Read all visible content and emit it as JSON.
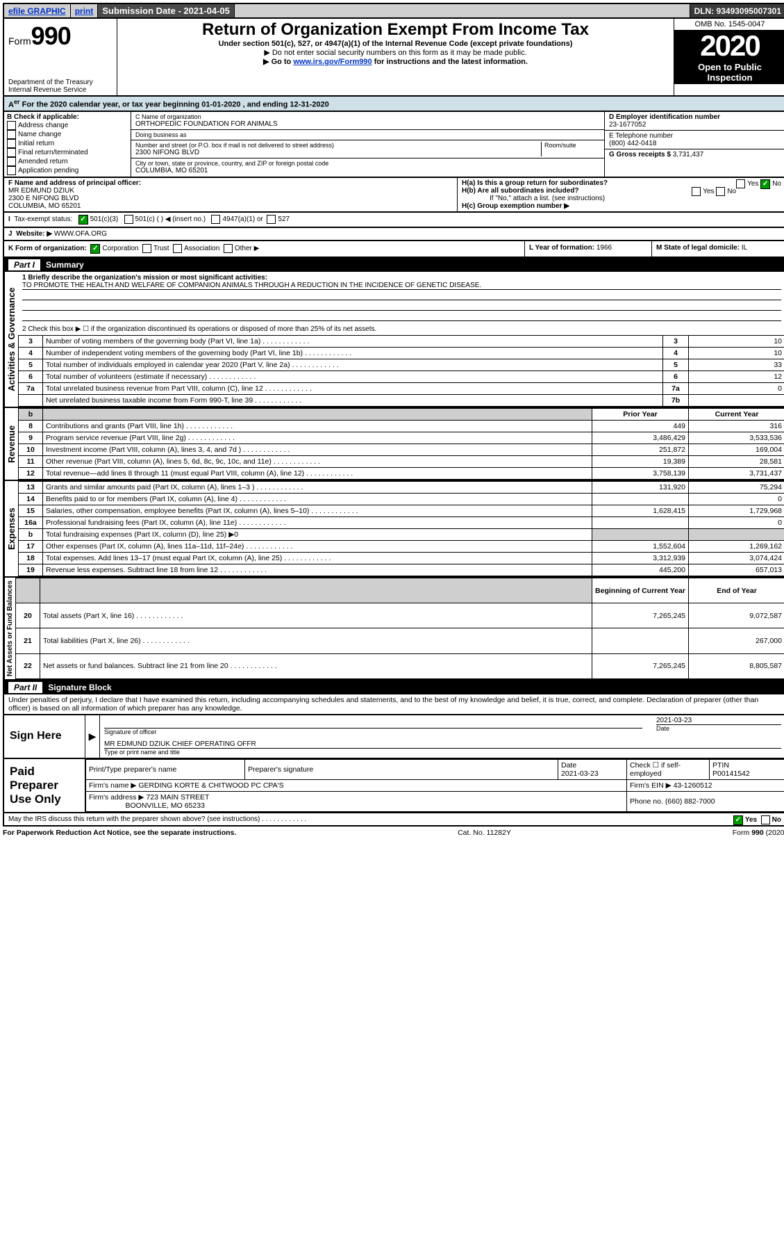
{
  "topbar": {
    "efile": "efile GRAPHIC",
    "print": "print",
    "subdate_label": "Submission Date - 2021-04-05",
    "dln": "DLN: 93493095007301"
  },
  "header": {
    "form_label": "Form",
    "form_number": "990",
    "title": "Return of Organization Exempt From Income Tax",
    "subtitle": "Under section 501(c), 527, or 4947(a)(1) of the Internal Revenue Code (except private foundations)",
    "note1": "▶ Do not enter social security numbers on this form as it may be made public.",
    "note2_pre": "▶ Go to ",
    "note2_link": "www.irs.gov/Form990",
    "note2_post": " for instructions and the latest information.",
    "dept": "Department of the Treasury",
    "irs": "Internal Revenue Service",
    "omb": "OMB No. 1545-0047",
    "year": "2020",
    "openpub1": "Open to Public",
    "openpub2": "Inspection"
  },
  "A": {
    "text": "For the 2020 calendar year, or tax year beginning 01-01-2020   , and ending 12-31-2020"
  },
  "B": {
    "label": "B Check if applicable:",
    "items": [
      "Address change",
      "Name change",
      "Initial return",
      "Final return/terminated",
      "Amended return",
      "Application pending"
    ]
  },
  "C": {
    "name_label": "C Name of organization",
    "name": "ORTHOPEDIC FOUNDATION FOR ANIMALS",
    "dba_label": "Doing business as",
    "dba": "",
    "addr_label": "Number and street (or P.O. box if mail is not delivered to street address)",
    "room_label": "Room/suite",
    "addr": "2300 NIFONG BLVD",
    "city_label": "City or town, state or province, country, and ZIP or foreign postal code",
    "city": "COLUMBIA, MO  65201"
  },
  "D": {
    "label": "D Employer identification number",
    "val": "23-1677052"
  },
  "E": {
    "label": "E Telephone number",
    "val": "(800) 442-0418"
  },
  "G": {
    "label": "G Gross receipts $",
    "val": "3,731,437"
  },
  "F": {
    "label": "F  Name and address of principal officer:",
    "name": "MR EDMUND DZIUK",
    "addr1": "2300 E NIFONG BLVD",
    "addr2": "COLUMBIA, MO  65201"
  },
  "H": {
    "a": "H(a)  Is this a group return for subordinates?",
    "b": "H(b)  Are all subordinates included?",
    "b_note": "If \"No,\" attach a list. (see instructions)",
    "c": "H(c)  Group exemption number ▶",
    "yes": "Yes",
    "no": "No"
  },
  "I": {
    "label": "Tax-exempt status:",
    "c3": "501(c)(3)",
    "c": "501(c) (  ) ◀ (insert no.)",
    "a1": "4947(a)(1) or",
    "527": "527"
  },
  "J": {
    "label": "Website: ▶",
    "val": "WWW.OFA.ORG"
  },
  "K": {
    "label": "K Form of organization:",
    "corp": "Corporation",
    "trust": "Trust",
    "assoc": "Association",
    "other": "Other ▶"
  },
  "L": {
    "label": "L Year of formation:",
    "val": "1966"
  },
  "M": {
    "label": "M State of legal domicile:",
    "val": "IL"
  },
  "part1": {
    "title": "Part I",
    "name": "Summary",
    "q1_label": "1  Briefly describe the organization's mission or most significant activities:",
    "q1_val": "TO PROMOTE THE HEALTH AND WELFARE OF COMPANION ANIMALS THROUGH A REDUCTION IN THE INCIDENCE OF GENETIC DISEASE.",
    "q2": "2   Check this box ▶ ☐  if the organization discontinued its operations or disposed of more than 25% of its net assets.",
    "rows_gov": [
      {
        "n": "3",
        "d": "Number of voting members of the governing body (Part VI, line 1a)",
        "c": "3",
        "v": "10"
      },
      {
        "n": "4",
        "d": "Number of independent voting members of the governing body (Part VI, line 1b)",
        "c": "4",
        "v": "10"
      },
      {
        "n": "5",
        "d": "Total number of individuals employed in calendar year 2020 (Part V, line 2a)",
        "c": "5",
        "v": "33"
      },
      {
        "n": "6",
        "d": "Total number of volunteers (estimate if necessary)",
        "c": "6",
        "v": "12"
      },
      {
        "n": "7a",
        "d": "Total unrelated business revenue from Part VIII, column (C), line 12",
        "c": "7a",
        "v": "0"
      },
      {
        "n": "",
        "d": "Net unrelated business taxable income from Form 990-T, line 39",
        "c": "7b",
        "v": ""
      }
    ],
    "hdr_prior": "Prior Year",
    "hdr_curr": "Current Year",
    "rows_rev": [
      {
        "n": "8",
        "d": "Contributions and grants (Part VIII, line 1h)",
        "p": "449",
        "c": "316"
      },
      {
        "n": "9",
        "d": "Program service revenue (Part VIII, line 2g)",
        "p": "3,486,429",
        "c": "3,533,536"
      },
      {
        "n": "10",
        "d": "Investment income (Part VIII, column (A), lines 3, 4, and 7d )",
        "p": "251,872",
        "c": "169,004"
      },
      {
        "n": "11",
        "d": "Other revenue (Part VIII, column (A), lines 5, 6d, 8c, 9c, 10c, and 11e)",
        "p": "19,389",
        "c": "28,581"
      },
      {
        "n": "12",
        "d": "Total revenue—add lines 8 through 11 (must equal Part VIII, column (A), line 12)",
        "p": "3,758,139",
        "c": "3,731,437"
      }
    ],
    "rows_exp": [
      {
        "n": "13",
        "d": "Grants and similar amounts paid (Part IX, column (A), lines 1–3 )",
        "p": "131,920",
        "c": "75,294"
      },
      {
        "n": "14",
        "d": "Benefits paid to or for members (Part IX, column (A), line 4)",
        "p": "",
        "c": "0"
      },
      {
        "n": "15",
        "d": "Salaries, other compensation, employee benefits (Part IX, column (A), lines 5–10)",
        "p": "1,628,415",
        "c": "1,729,968"
      },
      {
        "n": "16a",
        "d": "Professional fundraising fees (Part IX, column (A), line 11e)",
        "p": "",
        "c": "0"
      },
      {
        "n": "b",
        "d": "Total fundraising expenses (Part IX, column (D), line 25) ▶0",
        "p": "",
        "c": "",
        "shade": true
      },
      {
        "n": "17",
        "d": "Other expenses (Part IX, column (A), lines 11a–11d, 11f–24e)",
        "p": "1,552,604",
        "c": "1,269,162"
      },
      {
        "n": "18",
        "d": "Total expenses. Add lines 13–17 (must equal Part IX, column (A), line 25)",
        "p": "3,312,939",
        "c": "3,074,424"
      },
      {
        "n": "19",
        "d": "Revenue less expenses. Subtract line 18 from line 12",
        "p": "445,200",
        "c": "657,013"
      }
    ],
    "hdr_beg": "Beginning of Current Year",
    "hdr_end": "End of Year",
    "rows_net": [
      {
        "n": "20",
        "d": "Total assets (Part X, line 16)",
        "p": "7,265,245",
        "c": "9,072,587"
      },
      {
        "n": "21",
        "d": "Total liabilities (Part X, line 26)",
        "p": "",
        "c": "267,000"
      },
      {
        "n": "22",
        "d": "Net assets or fund balances. Subtract line 21 from line 20",
        "p": "7,265,245",
        "c": "8,805,587"
      }
    ],
    "side_gov": "Activities & Governance",
    "side_rev": "Revenue",
    "side_exp": "Expenses",
    "side_net": "Net Assets or Fund Balances"
  },
  "part2": {
    "title": "Part II",
    "name": "Signature Block",
    "perjury": "Under penalties of perjury, I declare that I have examined this return, including accompanying schedules and statements, and to the best of my knowledge and belief, it is true, correct, and complete. Declaration of preparer (other than officer) is based on all information of which preparer has any knowledge."
  },
  "sign": {
    "here": "Sign Here",
    "sig_officer": "Signature of officer",
    "date": "2021-03-23",
    "date_label": "Date",
    "officer_name": "MR EDMUND DZIUK  CHIEF OPERATING OFFR",
    "type_name": "Type or print name and title"
  },
  "paid": {
    "title": "Paid Preparer Use Only",
    "h1": "Print/Type preparer's name",
    "h2": "Preparer's signature",
    "h3": "Date",
    "h4": "Check ☐ if self-employed",
    "h5": "PTIN",
    "date": "2021-03-23",
    "ptin": "P00141542",
    "firm_label": "Firm's name    ▶",
    "firm": "GERDING KORTE & CHITWOOD PC CPA'S",
    "ein_label": "Firm's EIN ▶",
    "ein": "43-1260512",
    "addr_label": "Firm's address ▶",
    "addr1": "723 MAIN STREET",
    "addr2": "BOONVILLE, MO  65233",
    "phone_label": "Phone no.",
    "phone": "(660) 882-7000"
  },
  "discuss": "May the IRS discuss this return with the preparer shown above? (see instructions)",
  "footer": {
    "left": "For Paperwork Reduction Act Notice, see the separate instructions.",
    "mid": "Cat. No. 11282Y",
    "right": "Form 990 (2020)"
  }
}
